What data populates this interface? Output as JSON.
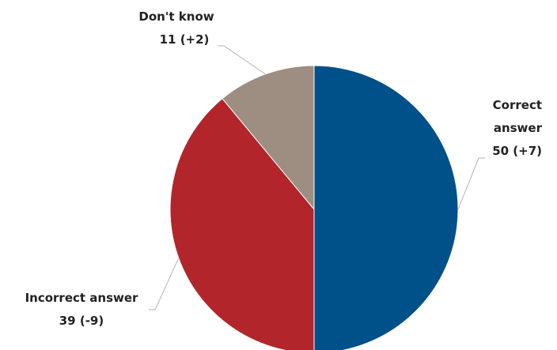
{
  "chart_data": {
    "type": "pie",
    "start_angle_deg": 0,
    "direction": "clockwise",
    "slices": [
      {
        "label_lines": [
          "Correct",
          "answer"
        ],
        "value": 50,
        "change": "+7",
        "value_text": "50 (+7)",
        "color": "#00508a"
      },
      {
        "label_lines": [
          "Incorrect answer"
        ],
        "value": 39,
        "change": "-9",
        "value_text": "39 (-9)",
        "color": "#b2262b"
      },
      {
        "label_lines": [
          "Don't know"
        ],
        "value": 11,
        "change": "+2",
        "value_text": "11 (+2)",
        "color": "#9e8d81"
      }
    ]
  }
}
